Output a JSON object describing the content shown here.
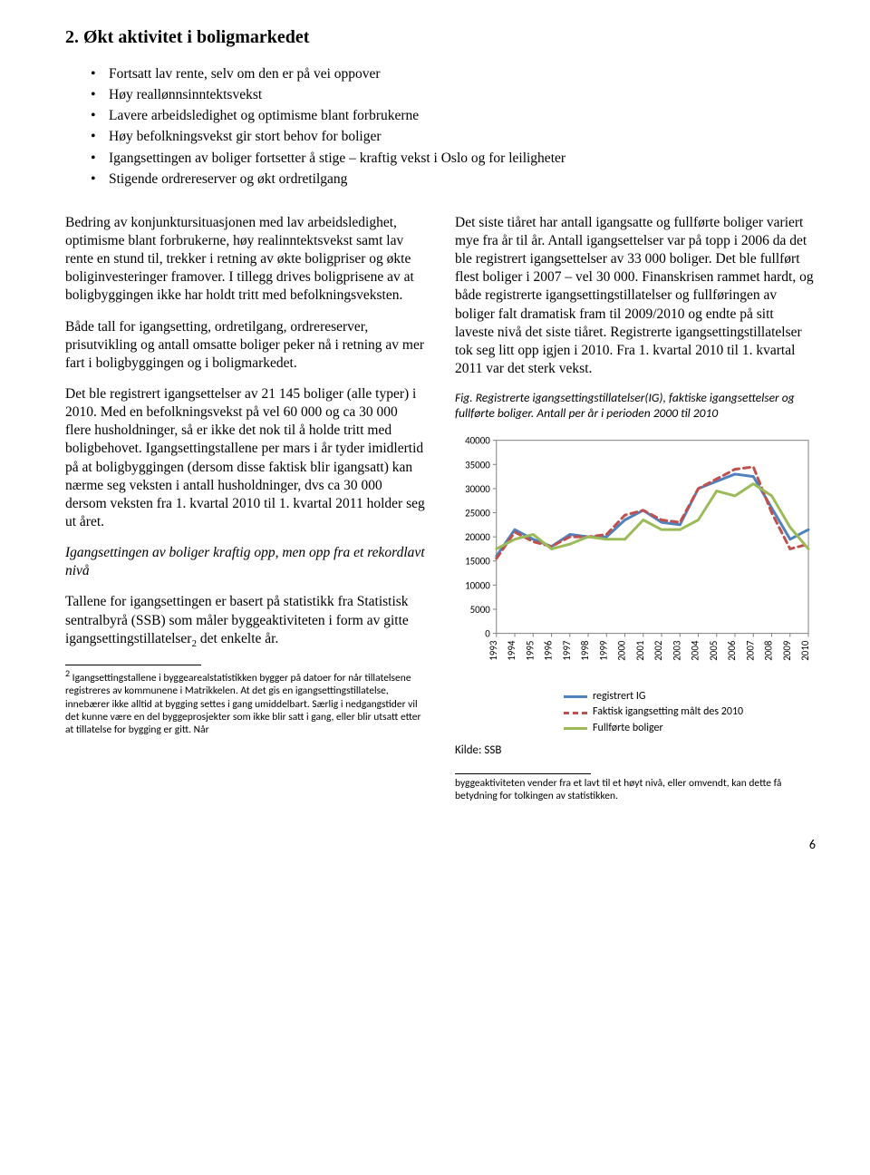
{
  "title": "2. Økt aktivitet i boligmarkedet",
  "bullets": [
    "Fortsatt lav rente, selv om den er på vei oppover",
    "Høy reallønnsinntektsvekst",
    "Lavere arbeidsledighet og optimisme blant forbrukerne",
    "Høy befolkningsvekst gir stort behov for boliger",
    "Igangsettingen av boliger fortsetter å stige – kraftig vekst i Oslo og for leiligheter",
    "Stigende ordrereserver og økt ordretilgang"
  ],
  "left": {
    "p1": "Bedring av konjunktursituasjonen med lav arbeidsledighet, optimisme blant forbrukerne, høy realinntektsvekst samt lav rente en stund til, trekker i retning av økte boligpriser og økte boliginvesteringer framover. I tillegg drives boligprisene av at boligbyggingen ikke har holdt tritt med befolkningsveksten.",
    "p2": "Både tall for igangsetting, ordretilgang, ordrereserver, prisutvikling og antall omsatte boliger peker nå i retning av mer fart i boligbyggingen og i boligmarkedet.",
    "p3": "Det ble registrert igangsettelser av 21 145 boliger (alle typer) i 2010. Med en befolkningsvekst på vel 60 000 og ca 30 000 flere husholdninger, så er ikke det nok til å holde tritt med boligbehovet. Igangsettingstallene per mars i år tyder imidlertid på at boligbyggingen (dersom disse faktisk blir igangsatt) kan nærme seg veksten i antall husholdninger, dvs ca 30 000 dersom veksten fra 1. kvartal 2010 til 1. kvartal 2011 holder seg ut året.",
    "p4": "Igangsettingen av boliger kraftig opp, men opp fra et rekordlavt nivå",
    "p5a": "Tallene for igangsettingen er basert på statistikk fra Statistisk sentralbyrå (SSB) som måler byggeaktiviteten i form av gitte igangsettingstillatelser",
    "p5b": " det enkelte år.",
    "fn_marker": "2"
  },
  "right": {
    "p1": "Det siste tiåret har antall igangsatte og fullførte boliger variert mye fra år til år. Antall igangsettelser var på topp i 2006 da det ble registrert igangsettelser av 33 000 boliger. Det ble fullført flest boliger i 2007 – vel 30 000. Finanskrisen rammet hardt, og både registrerte igangsettingstillatelser og fullføringen av boliger falt dramatisk fram til 2009/2010 og endte på sitt laveste nivå det siste tiåret. Registrerte igangsettingstillatelser tok seg litt opp igjen i 2010. Fra 1. kvartal 2010 til 1. kvartal 2011 var det sterk vekst.",
    "fig_caption": "Fig. Registrerte igangsettingstillatelser(IG), faktiske igangsettelser og fullførte boliger. Antall per år i perioden 2000 til 2010",
    "source": "Kilde: SSB"
  },
  "chart": {
    "type": "line",
    "ylim": [
      0,
      40000
    ],
    "ytick_step": 5000,
    "yticks": [
      "0",
      "5000",
      "10000",
      "15000",
      "20000",
      "25000",
      "30000",
      "35000",
      "40000"
    ],
    "x_years": [
      "1993",
      "1994",
      "1995",
      "1996",
      "1997",
      "1998",
      "1999",
      "2000",
      "2001",
      "2002",
      "2003",
      "2004",
      "2005",
      "2006",
      "2007",
      "2008",
      "2009",
      "2010"
    ],
    "axis_color": "#808080",
    "tick_color": "#808080",
    "text_color": "#000000",
    "label_fontsize": 11,
    "series": [
      {
        "name": "registrert IG",
        "color": "#4f81bd",
        "width": 3,
        "dash": "",
        "values": [
          16000,
          21500,
          19500,
          18000,
          20500,
          20000,
          20000,
          23500,
          25500,
          23000,
          22500,
          30000,
          31500,
          33000,
          32500,
          26000,
          19500,
          21500
        ]
      },
      {
        "name": "Faktisk igangsetting målt des 2010",
        "color": "#c0504d",
        "width": 3,
        "dash": "7,5",
        "values": [
          15500,
          21000,
          19000,
          18000,
          20000,
          20000,
          20500,
          24500,
          25500,
          23500,
          23000,
          30000,
          32000,
          34000,
          34500,
          25000,
          17500,
          18500
        ]
      },
      {
        "name": "Fullførte boliger",
        "color": "#9bbb59",
        "width": 3,
        "dash": "",
        "values": [
          17500,
          19500,
          20500,
          17500,
          18500,
          20000,
          19500,
          19500,
          23500,
          21500,
          21500,
          23500,
          29500,
          28500,
          31000,
          28500,
          22000,
          17500
        ]
      }
    ]
  },
  "footnotes": {
    "left_num": "2",
    "left": " Igangsettingstallene i byggearealstatistikken bygger på datoer for når tillatelsene registreres av kommunene i Matrikkelen. At det gis en igangsettingstillatelse, innebærer ikke alltid at bygging settes i gang umiddelbart. Særlig i nedgangstider vil det kunne være en del byggeprosjekter som ikke blir satt i gang, eller blir utsatt etter at tillatelse for bygging er gitt. Når",
    "right": "byggeaktiviteten vender fra et lavt til et høyt nivå, eller omvendt, kan dette få betydning for tolkingen av statistikken."
  },
  "page_number": "6"
}
